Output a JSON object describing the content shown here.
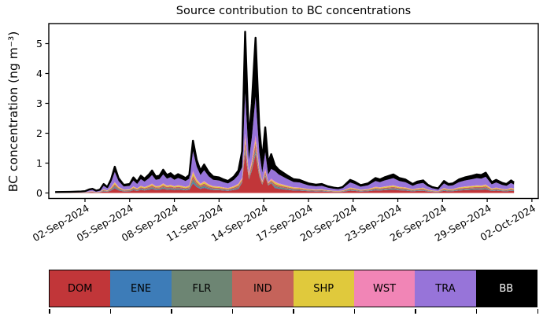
{
  "chart_data": {
    "type": "area",
    "stacked": true,
    "title": "Source contribution to BC concentrations",
    "ylabel": "BC concentration (ng m⁻³)",
    "xlabel": "",
    "grid": false,
    "ylim": [
      -0.18,
      5.67
    ],
    "y_ticks": [
      0,
      1,
      2,
      3,
      4,
      5
    ],
    "x_unit": "days since 31-Aug-2024 00:00",
    "x_ticks": {
      "days": [
        2,
        5,
        8,
        11,
        14,
        17,
        20,
        23,
        26,
        29,
        32
      ],
      "labels": [
        "02-Sep-2024",
        "05-Sep-2024",
        "08-Sep-2024",
        "11-Sep-2024",
        "14-Sep-2024",
        "17-Sep-2024",
        "20-Sep-2024",
        "23-Sep-2024",
        "26-Sep-2024",
        "29-Sep-2024",
        "02-Oct-2024"
      ]
    },
    "total_line_color": "#000000",
    "x_days": [
      0,
      1,
      1.75,
      2,
      2.3,
      2.5,
      2.75,
      3,
      3.25,
      3.5,
      3.75,
      4,
      4.25,
      4.6,
      5,
      5.25,
      5.5,
      5.75,
      6,
      6.3,
      6.5,
      6.75,
      7,
      7.25,
      7.5,
      7.75,
      8,
      8.25,
      8.5,
      8.75,
      9,
      9.25,
      9.5,
      9.75,
      10,
      10.3,
      10.6,
      11,
      11.3,
      11.6,
      12,
      12.3,
      12.55,
      12.75,
      13,
      13.2,
      13.45,
      13.7,
      13.9,
      14.1,
      14.3,
      14.5,
      14.75,
      15,
      15.3,
      15.6,
      16,
      16.4,
      16.7,
      17,
      17.5,
      17.9,
      18.3,
      18.7,
      19,
      19.3,
      19.8,
      20.1,
      20.5,
      21,
      21.5,
      21.8,
      22.1,
      22.7,
      23.1,
      23.5,
      24,
      24.3,
      24.7,
      25,
      25.3,
      25.7,
      26.1,
      26.4,
      26.7,
      27.1,
      27.5,
      28,
      28.3,
      28.6,
      28.9,
      29.1,
      29.3,
      29.6,
      30,
      30.3,
      30.6,
      30.8
    ],
    "series": [
      {
        "name": "DOM",
        "color": "#c13639",
        "values": [
          0.005,
          0.007,
          0.009,
          0.011,
          0.022,
          0.025,
          0.014,
          0.02,
          0.054,
          0.036,
          0.081,
          0.158,
          0.09,
          0.049,
          0.054,
          0.094,
          0.068,
          0.104,
          0.086,
          0.112,
          0.135,
          0.099,
          0.104,
          0.14,
          0.108,
          0.119,
          0.099,
          0.113,
          0.103,
          0.09,
          0.108,
          0.315,
          0.198,
          0.135,
          0.171,
          0.126,
          0.099,
          0.094,
          0.081,
          0.072,
          0.099,
          0.135,
          0.35,
          1.35,
          0.45,
          0.75,
          1.3,
          0.55,
          0.275,
          0.55,
          0.25,
          0.325,
          0.166,
          0.14,
          0.122,
          0.104,
          0.083,
          0.079,
          0.068,
          0.058,
          0.05,
          0.054,
          0.04,
          0.032,
          0.029,
          0.036,
          0.079,
          0.068,
          0.047,
          0.058,
          0.09,
          0.081,
          0.094,
          0.112,
          0.09,
          0.081,
          0.054,
          0.068,
          0.076,
          0.05,
          0.036,
          0.027,
          0.072,
          0.054,
          0.058,
          0.081,
          0.094,
          0.104,
          0.112,
          0.108,
          0.122,
          0.094,
          0.065,
          0.079,
          0.061,
          0.054,
          0.076,
          0.063
        ]
      },
      {
        "name": "ENE",
        "color": "#3d7cb8",
        "values": [
          0.001,
          0.001,
          0.002,
          0.002,
          0.004,
          0.004,
          0.002,
          0.003,
          0.009,
          0.006,
          0.014,
          0.026,
          0.015,
          0.008,
          0.009,
          0.016,
          0.011,
          0.017,
          0.014,
          0.019,
          0.023,
          0.017,
          0.017,
          0.023,
          0.018,
          0.02,
          0.017,
          0.019,
          0.017,
          0.015,
          0.018,
          0.053,
          0.033,
          0.023,
          0.029,
          0.021,
          0.017,
          0.016,
          0.014,
          0.012,
          0.017,
          0.023,
          0.014,
          0.054,
          0.018,
          0.03,
          0.052,
          0.022,
          0.011,
          0.022,
          0.01,
          0.013,
          0.028,
          0.023,
          0.02,
          0.017,
          0.014,
          0.013,
          0.011,
          0.01,
          0.008,
          0.009,
          0.007,
          0.005,
          0.005,
          0.006,
          0.013,
          0.011,
          0.008,
          0.01,
          0.015,
          0.014,
          0.016,
          0.019,
          0.015,
          0.014,
          0.009,
          0.011,
          0.013,
          0.008,
          0.006,
          0.005,
          0.012,
          0.009,
          0.01,
          0.014,
          0.016,
          0.017,
          0.019,
          0.018,
          0.02,
          0.016,
          0.011,
          0.013,
          0.01,
          0.009,
          0.013,
          0.011
        ]
      },
      {
        "name": "FLR",
        "color": "#6d8573",
        "values": [
          0.002,
          0.002,
          0.003,
          0.003,
          0.006,
          0.007,
          0.004,
          0.006,
          0.015,
          0.01,
          0.023,
          0.044,
          0.025,
          0.014,
          0.015,
          0.026,
          0.019,
          0.029,
          0.024,
          0.031,
          0.038,
          0.028,
          0.029,
          0.039,
          0.03,
          0.033,
          0.028,
          0.032,
          0.029,
          0.025,
          0.03,
          0.088,
          0.055,
          0.038,
          0.048,
          0.035,
          0.028,
          0.026,
          0.023,
          0.02,
          0.028,
          0.038,
          0.028,
          0.108,
          0.036,
          0.06,
          0.104,
          0.044,
          0.022,
          0.044,
          0.02,
          0.026,
          0.046,
          0.039,
          0.034,
          0.029,
          0.023,
          0.022,
          0.019,
          0.016,
          0.014,
          0.015,
          0.011,
          0.009,
          0.008,
          0.01,
          0.022,
          0.019,
          0.013,
          0.016,
          0.025,
          0.023,
          0.026,
          0.031,
          0.025,
          0.023,
          0.015,
          0.019,
          0.021,
          0.014,
          0.01,
          0.008,
          0.02,
          0.015,
          0.016,
          0.023,
          0.026,
          0.029,
          0.031,
          0.03,
          0.034,
          0.026,
          0.018,
          0.022,
          0.017,
          0.015,
          0.021,
          0.018
        ]
      },
      {
        "name": "IND",
        "color": "#c5635a",
        "values": [
          0.002,
          0.003,
          0.004,
          0.004,
          0.008,
          0.01,
          0.006,
          0.008,
          0.021,
          0.014,
          0.032,
          0.062,
          0.035,
          0.019,
          0.021,
          0.036,
          0.027,
          0.041,
          0.034,
          0.043,
          0.053,
          0.039,
          0.041,
          0.055,
          0.042,
          0.046,
          0.039,
          0.044,
          0.04,
          0.035,
          0.042,
          0.123,
          0.077,
          0.053,
          0.067,
          0.049,
          0.039,
          0.036,
          0.032,
          0.028,
          0.039,
          0.053,
          0.056,
          0.216,
          0.072,
          0.12,
          0.208,
          0.088,
          0.044,
          0.088,
          0.04,
          0.052,
          0.064,
          0.055,
          0.048,
          0.041,
          0.032,
          0.031,
          0.027,
          0.022,
          0.02,
          0.021,
          0.015,
          0.013,
          0.011,
          0.014,
          0.031,
          0.027,
          0.018,
          0.022,
          0.035,
          0.032,
          0.036,
          0.043,
          0.035,
          0.032,
          0.021,
          0.027,
          0.029,
          0.02,
          0.014,
          0.011,
          0.028,
          0.021,
          0.022,
          0.032,
          0.036,
          0.041,
          0.043,
          0.042,
          0.048,
          0.036,
          0.025,
          0.031,
          0.024,
          0.021,
          0.029,
          0.025
        ]
      },
      {
        "name": "SHP",
        "color": "#e0c93c",
        "values": [
          0.002,
          0.002,
          0.003,
          0.004,
          0.007,
          0.008,
          0.005,
          0.007,
          0.018,
          0.012,
          0.027,
          0.053,
          0.03,
          0.016,
          0.018,
          0.031,
          0.023,
          0.035,
          0.029,
          0.037,
          0.045,
          0.033,
          0.035,
          0.047,
          0.036,
          0.04,
          0.033,
          0.038,
          0.034,
          0.03,
          0.036,
          0.105,
          0.066,
          0.045,
          0.057,
          0.042,
          0.033,
          0.031,
          0.027,
          0.024,
          0.033,
          0.045,
          0.028,
          0.108,
          0.036,
          0.06,
          0.104,
          0.044,
          0.022,
          0.044,
          0.02,
          0.026,
          0.055,
          0.047,
          0.041,
          0.035,
          0.028,
          0.026,
          0.023,
          0.019,
          0.017,
          0.018,
          0.013,
          0.011,
          0.01,
          0.012,
          0.026,
          0.023,
          0.016,
          0.019,
          0.03,
          0.027,
          0.031,
          0.037,
          0.03,
          0.027,
          0.018,
          0.023,
          0.025,
          0.017,
          0.012,
          0.009,
          0.024,
          0.018,
          0.019,
          0.027,
          0.031,
          0.035,
          0.037,
          0.036,
          0.041,
          0.031,
          0.022,
          0.026,
          0.02,
          0.018,
          0.025,
          0.021
        ]
      },
      {
        "name": "WST",
        "color": "#f185b6",
        "values": [
          0.001,
          0.001,
          0.002,
          0.002,
          0.004,
          0.004,
          0.002,
          0.003,
          0.009,
          0.006,
          0.014,
          0.026,
          0.015,
          0.008,
          0.009,
          0.016,
          0.011,
          0.017,
          0.014,
          0.019,
          0.023,
          0.017,
          0.017,
          0.023,
          0.018,
          0.02,
          0.017,
          0.019,
          0.017,
          0.015,
          0.018,
          0.053,
          0.033,
          0.023,
          0.029,
          0.021,
          0.017,
          0.016,
          0.014,
          0.012,
          0.017,
          0.023,
          0.042,
          0.162,
          0.054,
          0.09,
          0.156,
          0.066,
          0.033,
          0.066,
          0.03,
          0.039,
          0.028,
          0.023,
          0.02,
          0.017,
          0.014,
          0.013,
          0.011,
          0.01,
          0.008,
          0.009,
          0.007,
          0.005,
          0.005,
          0.006,
          0.013,
          0.011,
          0.008,
          0.01,
          0.015,
          0.014,
          0.016,
          0.019,
          0.015,
          0.014,
          0.009,
          0.011,
          0.013,
          0.008,
          0.006,
          0.005,
          0.012,
          0.009,
          0.01,
          0.014,
          0.016,
          0.017,
          0.019,
          0.018,
          0.02,
          0.016,
          0.011,
          0.013,
          0.01,
          0.009,
          0.013,
          0.011
        ]
      },
      {
        "name": "TRA",
        "color": "#9774d9",
        "values": [
          0.011,
          0.015,
          0.019,
          0.023,
          0.046,
          0.053,
          0.03,
          0.042,
          0.114,
          0.076,
          0.171,
          0.334,
          0.19,
          0.103,
          0.114,
          0.198,
          0.144,
          0.22,
          0.182,
          0.236,
          0.285,
          0.209,
          0.22,
          0.296,
          0.228,
          0.251,
          0.209,
          0.239,
          0.217,
          0.19,
          0.228,
          0.665,
          0.418,
          0.285,
          0.361,
          0.266,
          0.209,
          0.198,
          0.171,
          0.152,
          0.209,
          0.285,
          0.35,
          1.35,
          0.45,
          0.75,
          1.3,
          0.55,
          0.275,
          0.55,
          0.25,
          0.325,
          0.35,
          0.296,
          0.258,
          0.22,
          0.175,
          0.167,
          0.144,
          0.122,
          0.106,
          0.114,
          0.084,
          0.068,
          0.061,
          0.076,
          0.167,
          0.144,
          0.099,
          0.122,
          0.19,
          0.171,
          0.198,
          0.236,
          0.19,
          0.171,
          0.114,
          0.144,
          0.16,
          0.106,
          0.076,
          0.057,
          0.152,
          0.114,
          0.122,
          0.171,
          0.198,
          0.22,
          0.236,
          0.228,
          0.258,
          0.198,
          0.137,
          0.167,
          0.129,
          0.114,
          0.16,
          0.133
        ]
      },
      {
        "name": "BB",
        "color": "#000000",
        "values": [
          0.006,
          0.008,
          0.01,
          0.012,
          0.024,
          0.028,
          0.016,
          0.022,
          0.06,
          0.04,
          0.09,
          0.176,
          0.1,
          0.054,
          0.06,
          0.104,
          0.076,
          0.116,
          0.096,
          0.124,
          0.15,
          0.11,
          0.116,
          0.156,
          0.12,
          0.132,
          0.11,
          0.126,
          0.114,
          0.1,
          0.12,
          0.35,
          0.22,
          0.15,
          0.19,
          0.14,
          0.11,
          0.104,
          0.09,
          0.08,
          0.11,
          0.15,
          0.532,
          2.052,
          0.684,
          1.14,
          1.976,
          0.836,
          0.418,
          0.836,
          0.38,
          0.494,
          0.184,
          0.156,
          0.136,
          0.116,
          0.092,
          0.088,
          0.076,
          0.064,
          0.056,
          0.06,
          0.044,
          0.036,
          0.032,
          0.04,
          0.088,
          0.076,
          0.052,
          0.064,
          0.1,
          0.09,
          0.104,
          0.124,
          0.1,
          0.09,
          0.06,
          0.076,
          0.084,
          0.056,
          0.04,
          0.03,
          0.08,
          0.06,
          0.064,
          0.09,
          0.104,
          0.116,
          0.124,
          0.12,
          0.136,
          0.104,
          0.072,
          0.088,
          0.068,
          0.06,
          0.084,
          0.07
        ]
      }
    ],
    "legend": {
      "position": "bottom",
      "items": [
        {
          "label": "DOM",
          "color": "#c13639",
          "text_color": "#000000"
        },
        {
          "label": "ENE",
          "color": "#3d7cb8",
          "text_color": "#000000"
        },
        {
          "label": "FLR",
          "color": "#6d8573",
          "text_color": "#000000"
        },
        {
          "label": "IND",
          "color": "#c5635a",
          "text_color": "#000000"
        },
        {
          "label": "SHP",
          "color": "#e0c93c",
          "text_color": "#000000"
        },
        {
          "label": "WST",
          "color": "#f185b6",
          "text_color": "#000000"
        },
        {
          "label": "TRA",
          "color": "#9774d9",
          "text_color": "#000000"
        },
        {
          "label": "BB",
          "color": "#000000",
          "text_color": "#ffffff"
        }
      ]
    }
  }
}
